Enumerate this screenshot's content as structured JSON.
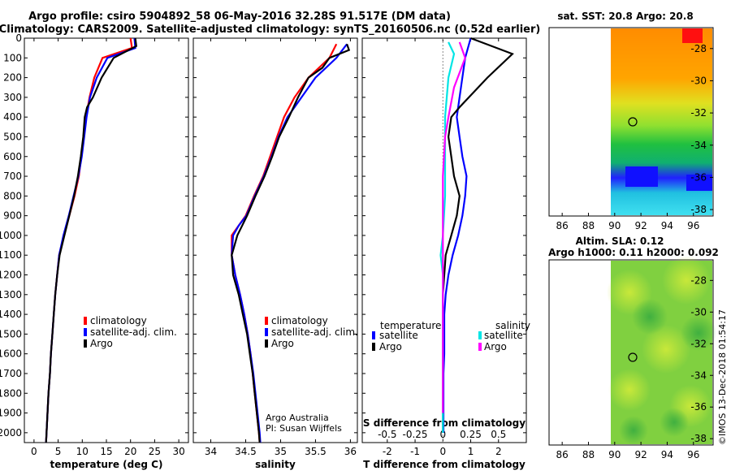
{
  "header": {
    "title_line1": "Argo profile: csiro 5904892_58 06-May-2016 32.28S 91.517E (DM data)",
    "title_line2": "Climatology: CARS2009. Satellite-adjusted climatology: synTS_20160506.nc (0.52d earlier)"
  },
  "colors": {
    "climatology": "#ff0000",
    "satellite": "#0000ff",
    "argo": "#000000",
    "sat_salinity": "#00e5e5",
    "argo_salinity": "#ff00ff"
  },
  "credit": {
    "line1": "Argo Australia",
    "line2": "PI: Susan Wijffels"
  },
  "stamp": "©IMOS 13-Dec-2018 01:54:17",
  "chart_data": [
    {
      "id": "temperature",
      "type": "line",
      "xlabel": "temperature (deg C)",
      "ylabel": "",
      "xlim": [
        -2,
        32
      ],
      "ylim": [
        2050,
        0
      ],
      "xticks": [
        0,
        5,
        10,
        15,
        20,
        25,
        30
      ],
      "yticks": [
        0,
        100,
        200,
        300,
        400,
        500,
        600,
        700,
        800,
        900,
        1000,
        1100,
        1200,
        1300,
        1400,
        1500,
        1600,
        1700,
        1800,
        1900,
        2000
      ],
      "legend": [
        "climatology",
        "satellite-adj. clim.",
        "Argo"
      ],
      "series": [
        {
          "name": "climatology",
          "color": "#ff0000",
          "points": [
            [
              20.0,
              0
            ],
            [
              20.3,
              50
            ],
            [
              14.2,
              100
            ],
            [
              12.5,
              200
            ],
            [
              11.5,
              300
            ],
            [
              10.8,
              400
            ],
            [
              10.3,
              500
            ],
            [
              9.8,
              600
            ],
            [
              9.3,
              700
            ],
            [
              8.4,
              800
            ],
            [
              7.3,
              900
            ],
            [
              6.2,
              1000
            ],
            [
              5.2,
              1100
            ],
            [
              4.8,
              1200
            ],
            [
              4.4,
              1300
            ],
            [
              4.1,
              1400
            ],
            [
              3.8,
              1500
            ],
            [
              3.5,
              1600
            ],
            [
              3.3,
              1700
            ],
            [
              3.0,
              1800
            ],
            [
              2.8,
              1900
            ],
            [
              2.6,
              2000
            ],
            [
              2.5,
              2050
            ]
          ]
        },
        {
          "name": "satellite-adj. clim.",
          "color": "#0000ff",
          "points": [
            [
              20.8,
              0
            ],
            [
              21.0,
              50
            ],
            [
              15.2,
              100
            ],
            [
              13.0,
              200
            ],
            [
              11.6,
              300
            ],
            [
              10.9,
              400
            ],
            [
              10.4,
              500
            ],
            [
              9.9,
              600
            ],
            [
              9.2,
              700
            ],
            [
              8.2,
              800
            ],
            [
              7.2,
              900
            ],
            [
              6.1,
              1000
            ],
            [
              5.2,
              1100
            ],
            [
              4.8,
              1200
            ],
            [
              4.4,
              1300
            ],
            [
              4.1,
              1400
            ],
            [
              3.8,
              1500
            ],
            [
              3.5,
              1600
            ],
            [
              3.3,
              1700
            ],
            [
              3.0,
              1800
            ],
            [
              2.8,
              1900
            ],
            [
              2.6,
              2000
            ],
            [
              2.5,
              2050
            ]
          ]
        },
        {
          "name": "Argo",
          "color": "#000000",
          "points": [
            [
              21.0,
              0
            ],
            [
              21.2,
              40
            ],
            [
              16.5,
              100
            ],
            [
              14.0,
              200
            ],
            [
              12.2,
              300
            ],
            [
              11.0,
              350
            ],
            [
              10.5,
              400
            ],
            [
              10.2,
              500
            ],
            [
              9.7,
              600
            ],
            [
              9.1,
              700
            ],
            [
              8.3,
              800
            ],
            [
              7.3,
              900
            ],
            [
              6.3,
              1000
            ],
            [
              5.3,
              1100
            ],
            [
              4.8,
              1200
            ],
            [
              4.4,
              1300
            ],
            [
              4.1,
              1400
            ],
            [
              3.8,
              1500
            ],
            [
              3.5,
              1600
            ],
            [
              3.3,
              1700
            ],
            [
              3.0,
              1800
            ],
            [
              2.8,
              1900
            ],
            [
              2.6,
              2000
            ],
            [
              2.5,
              2050
            ]
          ]
        }
      ]
    },
    {
      "id": "salinity",
      "type": "line",
      "xlabel": "salinity",
      "ylabel": "",
      "xlim": [
        33.75,
        36.1
      ],
      "ylim": [
        2050,
        0
      ],
      "xticks": [
        34,
        34.5,
        35,
        35.5,
        36
      ],
      "legend": [
        "climatology",
        "satellite-adj. clim.",
        "Argo"
      ],
      "series": [
        {
          "name": "climatology",
          "color": "#ff0000",
          "points": [
            [
              35.8,
              30
            ],
            [
              35.7,
              100
            ],
            [
              35.4,
              200
            ],
            [
              35.2,
              300
            ],
            [
              35.05,
              400
            ],
            [
              34.95,
              500
            ],
            [
              34.85,
              600
            ],
            [
              34.75,
              700
            ],
            [
              34.62,
              800
            ],
            [
              34.5,
              900
            ],
            [
              34.4,
              950
            ],
            [
              34.3,
              1000
            ],
            [
              34.3,
              1100
            ],
            [
              34.35,
              1200
            ],
            [
              34.42,
              1300
            ],
            [
              34.48,
              1400
            ],
            [
              34.53,
              1500
            ],
            [
              34.57,
              1600
            ],
            [
              34.6,
              1700
            ],
            [
              34.63,
              1800
            ],
            [
              34.66,
              1900
            ],
            [
              34.69,
              2000
            ],
            [
              34.7,
              2050
            ]
          ]
        },
        {
          "name": "satellite-adj. clim.",
          "color": "#0000ff",
          "points": [
            [
              35.95,
              30
            ],
            [
              35.8,
              100
            ],
            [
              35.5,
              200
            ],
            [
              35.3,
              300
            ],
            [
              35.1,
              400
            ],
            [
              34.97,
              500
            ],
            [
              34.87,
              600
            ],
            [
              34.76,
              700
            ],
            [
              34.63,
              800
            ],
            [
              34.51,
              900
            ],
            [
              34.4,
              950
            ],
            [
              34.32,
              1000
            ],
            [
              34.3,
              1100
            ],
            [
              34.35,
              1200
            ],
            [
              34.42,
              1300
            ],
            [
              34.48,
              1400
            ],
            [
              34.53,
              1500
            ],
            [
              34.57,
              1600
            ],
            [
              34.61,
              1700
            ],
            [
              34.64,
              1800
            ],
            [
              34.67,
              1900
            ],
            [
              34.7,
              2000
            ],
            [
              34.71,
              2050
            ]
          ]
        },
        {
          "name": "Argo",
          "color": "#000000",
          "points": [
            [
              35.95,
              30
            ],
            [
              35.98,
              60
            ],
            [
              35.7,
              100
            ],
            [
              35.6,
              150
            ],
            [
              35.4,
              200
            ],
            [
              35.25,
              300
            ],
            [
              35.12,
              400
            ],
            [
              34.98,
              500
            ],
            [
              34.88,
              600
            ],
            [
              34.77,
              700
            ],
            [
              34.64,
              800
            ],
            [
              34.52,
              900
            ],
            [
              34.38,
              1000
            ],
            [
              34.3,
              1100
            ],
            [
              34.32,
              1200
            ],
            [
              34.4,
              1300
            ],
            [
              34.46,
              1400
            ],
            [
              34.52,
              1500
            ],
            [
              34.56,
              1600
            ],
            [
              34.6,
              1700
            ],
            [
              34.63,
              1800
            ],
            [
              34.66,
              1900
            ],
            [
              34.69,
              2000
            ],
            [
              34.7,
              2050
            ]
          ]
        }
      ]
    },
    {
      "id": "differences",
      "type": "line",
      "xlabel": "T difference from climatology",
      "x2label": "S difference from climatology",
      "xlim": [
        -2.9,
        3.0
      ],
      "ylim": [
        2050,
        0
      ],
      "xticks": [
        -2,
        -1,
        0,
        1,
        2
      ],
      "x2ticks": [
        -0.5,
        -0.25,
        0,
        0.25,
        0.5
      ],
      "x2lim": [
        -0.725,
        0.75
      ],
      "legend_left_title": "temperature",
      "legend_right_title": "salinity",
      "legend_left": [
        "satellite",
        "Argo"
      ],
      "legend_right": [
        "satellite",
        "Argo"
      ],
      "series": [
        {
          "name": "temperature satellite",
          "color": "#0000ff",
          "axis": "T",
          "points": [
            [
              1.0,
              0
            ],
            [
              0.8,
              100
            ],
            [
              0.6,
              300
            ],
            [
              0.5,
              400
            ],
            [
              0.6,
              500
            ],
            [
              0.7,
              600
            ],
            [
              0.85,
              700
            ],
            [
              0.8,
              800
            ],
            [
              0.7,
              900
            ],
            [
              0.55,
              1000
            ],
            [
              0.35,
              1100
            ],
            [
              0.2,
              1200
            ],
            [
              0.1,
              1300
            ],
            [
              0.05,
              1400
            ],
            [
              0.05,
              1500
            ],
            [
              0.05,
              1600
            ],
            [
              0.02,
              1700
            ],
            [
              0.02,
              1800
            ],
            [
              0.02,
              1900
            ],
            [
              0.02,
              2000
            ]
          ]
        },
        {
          "name": "temperature Argo",
          "color": "#000000",
          "axis": "T",
          "points": [
            [
              1.0,
              0
            ],
            [
              2.5,
              80
            ],
            [
              1.6,
              200
            ],
            [
              0.6,
              350
            ],
            [
              0.3,
              400
            ],
            [
              0.2,
              500
            ],
            [
              0.3,
              600
            ],
            [
              0.4,
              700
            ],
            [
              0.6,
              800
            ],
            [
              0.5,
              900
            ],
            [
              0.3,
              1000
            ],
            [
              0.1,
              1100
            ],
            [
              0.05,
              1200
            ],
            [
              0.0,
              1300
            ],
            [
              0.0,
              1400
            ],
            [
              0.0,
              1500
            ],
            [
              0.0,
              1600
            ],
            [
              0.0,
              1700
            ],
            [
              0.0,
              1800
            ],
            [
              0.0,
              1900
            ],
            [
              0.0,
              2000
            ]
          ]
        },
        {
          "name": "salinity satellite",
          "color": "#00e5e5",
          "axis": "S",
          "points": [
            [
              0.05,
              20
            ],
            [
              0.1,
              80
            ],
            [
              0.05,
              200
            ],
            [
              0.02,
              400
            ],
            [
              0.02,
              600
            ],
            [
              0.02,
              800
            ],
            [
              0.0,
              1000
            ],
            [
              -0.02,
              1100
            ],
            [
              0.0,
              1200
            ],
            [
              0.0,
              1400
            ],
            [
              0.0,
              1600
            ],
            [
              0.0,
              1800
            ],
            [
              0.0,
              2000
            ]
          ]
        },
        {
          "name": "salinity Argo",
          "color": "#ff00ff",
          "axis": "S",
          "points": [
            [
              0.15,
              20
            ],
            [
              0.2,
              100
            ],
            [
              0.1,
              250
            ],
            [
              0.05,
              400
            ],
            [
              0.02,
              500
            ],
            [
              0.0,
              700
            ],
            [
              0.0,
              1000
            ],
            [
              0.0,
              1200
            ],
            [
              0.0,
              1400
            ],
            [
              0.0,
              1600
            ],
            [
              0.0,
              1800
            ],
            [
              0.0,
              1900
            ]
          ]
        }
      ]
    },
    {
      "id": "sst-map",
      "type": "heatmap",
      "title": "sat. SST: 20.8 Argo: 20.8",
      "xlim": [
        85,
        97.5
      ],
      "ylim": [
        -38.4,
        -26.7
      ],
      "xticks": [
        86,
        88,
        90,
        92,
        94,
        96
      ],
      "yticks": [
        -28,
        -30,
        -32,
        -34,
        -36,
        -38
      ],
      "marker": {
        "lon": 91.517,
        "lat": -32.28
      }
    },
    {
      "id": "sla-map",
      "type": "heatmap",
      "title": "Altim. SLA: 0.12",
      "subtitle": "Argo h1000: 0.11 h2000: 0.092",
      "xlim": [
        85,
        97.5
      ],
      "ylim": [
        -38.4,
        -26.7
      ],
      "xticks": [
        86,
        88,
        90,
        92,
        94,
        96
      ],
      "yticks": [
        -28,
        -30,
        -32,
        -34,
        -36,
        -38
      ],
      "marker": {
        "lon": 91.517,
        "lat": -32.28
      }
    }
  ]
}
